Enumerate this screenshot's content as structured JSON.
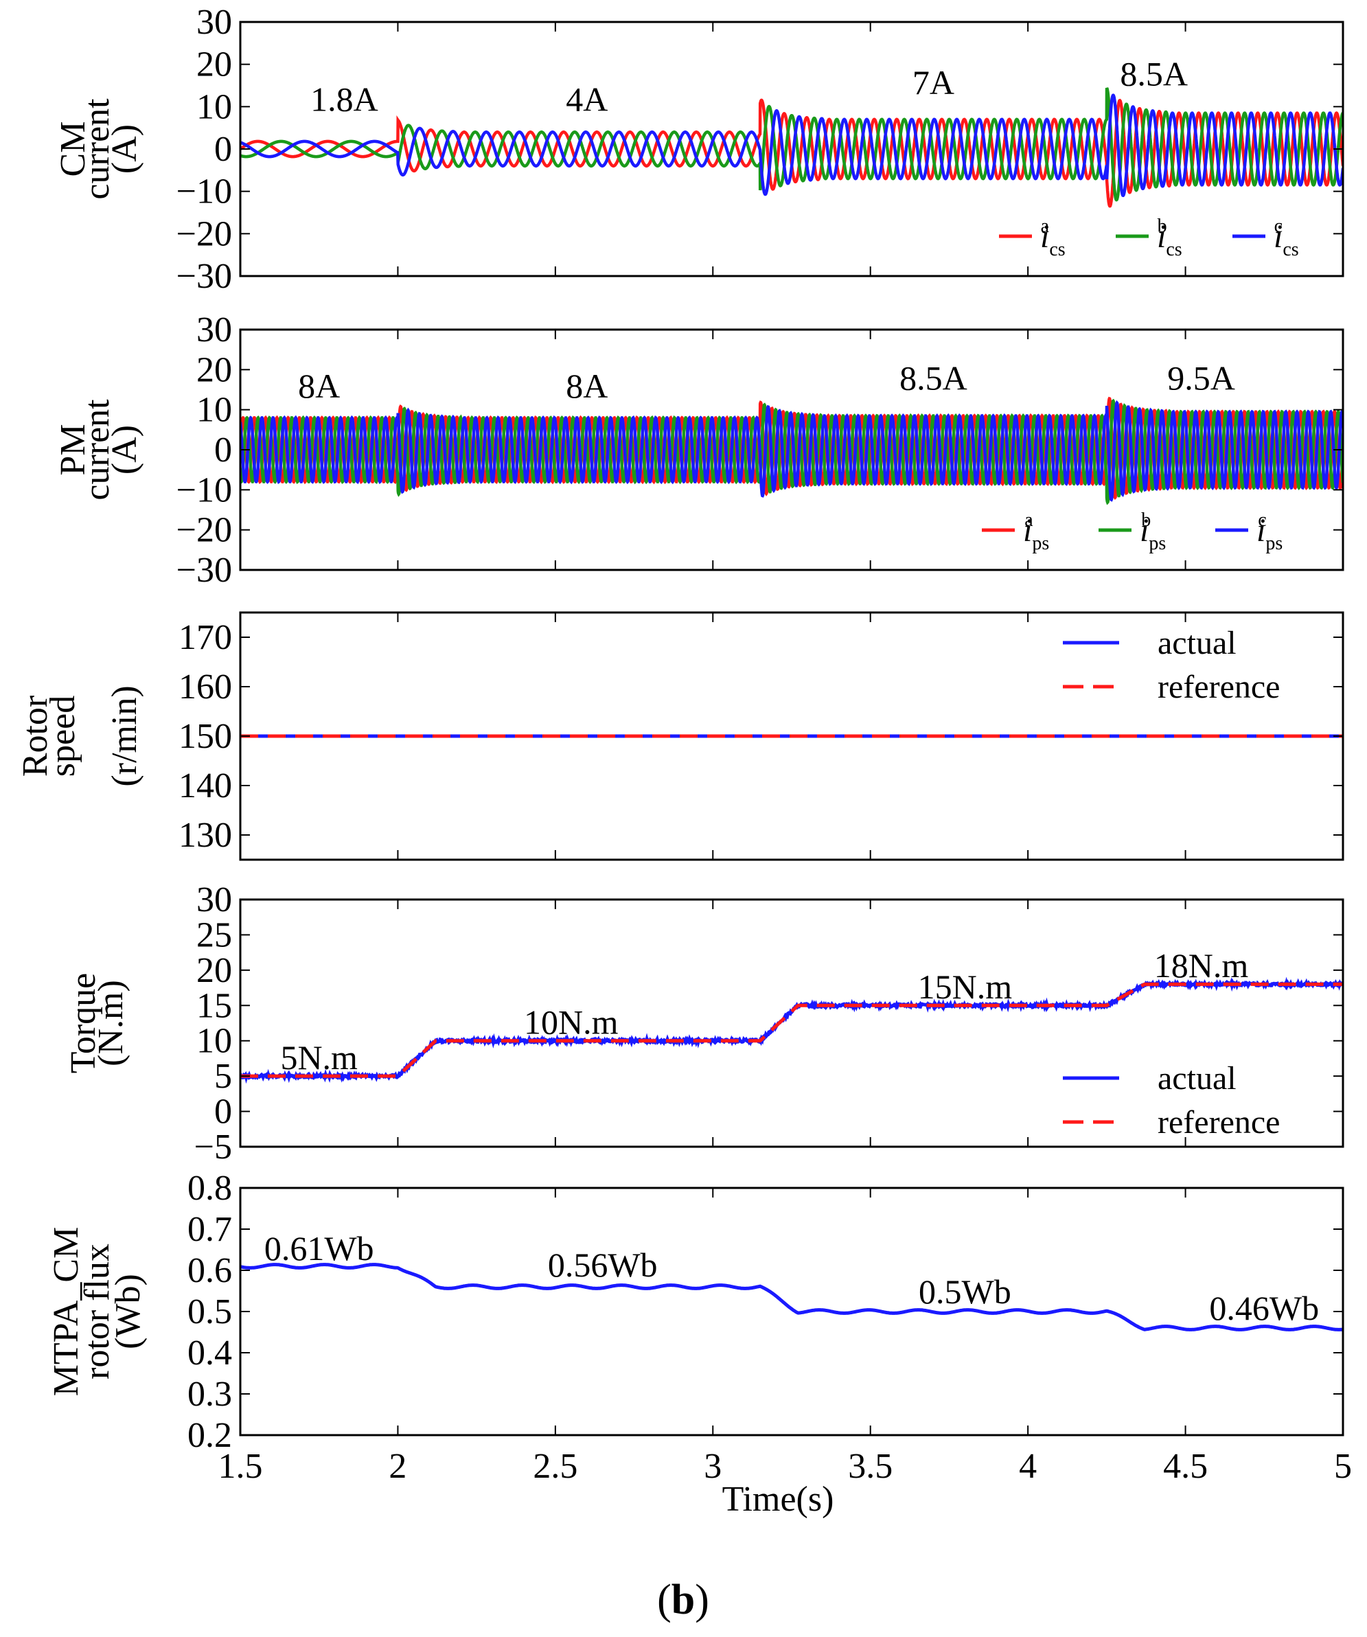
{
  "figure": {
    "caption_open": "(",
    "caption_letter": "b",
    "caption_close": ")",
    "xlabel": "Time(s)"
  },
  "chart_data": [
    {
      "type": "line",
      "id": "cm",
      "ylabel_lines": [
        "CM",
        "current",
        "(A)"
      ],
      "xlim": [
        1.5,
        5
      ],
      "ylim": [
        -30,
        30
      ],
      "yticks": [
        "30",
        "20",
        "10",
        "0",
        "−10",
        "−20",
        "−30"
      ],
      "xticks": [
        "1.5",
        "2",
        "2.5",
        "3",
        "3.5",
        "4",
        "4.5",
        "5"
      ],
      "signal": "three_phase",
      "segments": [
        {
          "t0": 1.5,
          "t1": 2.0,
          "amplitude": 1.8,
          "freq_hz": 4.5,
          "label": "1.8A",
          "label_x": 1.83,
          "label_y": 9
        },
        {
          "t0": 2.0,
          "t1": 3.15,
          "amplitude": 4,
          "freq_hz": 9.5,
          "label": "4A",
          "label_x": 2.6,
          "label_y": 9
        },
        {
          "t0": 3.15,
          "t1": 4.25,
          "amplitude": 7,
          "freq_hz": 14,
          "label": "7A",
          "label_x": 3.7,
          "label_y": 13
        },
        {
          "t0": 4.25,
          "t1": 5.0,
          "amplitude": 8.5,
          "freq_hz": 16,
          "label": "8.5A",
          "label_x": 4.4,
          "label_y": 15
        }
      ],
      "series": [
        {
          "name": "i_cs^a",
          "base": "i",
          "sub": "cs",
          "sup": "a",
          "color": "#ff1a1a"
        },
        {
          "name": "i_cs^b",
          "base": "i",
          "sub": "cs",
          "sup": "b",
          "color": "#1a9a1a"
        },
        {
          "name": "i_cs^c",
          "base": "i",
          "sub": "cs",
          "sup": "c",
          "color": "#1a1aff"
        }
      ],
      "legend": "bottom-right"
    },
    {
      "type": "line",
      "id": "pm",
      "ylabel_lines": [
        "PM",
        "current",
        "(A)"
      ],
      "xlim": [
        1.5,
        5
      ],
      "ylim": [
        -30,
        30
      ],
      "yticks": [
        "30",
        "20",
        "10",
        "0",
        "−10",
        "−20",
        "−30"
      ],
      "xticks": [
        "1.5",
        "2",
        "2.5",
        "3",
        "3.5",
        "4",
        "4.5",
        "5"
      ],
      "signal": "three_phase",
      "segments": [
        {
          "t0": 1.5,
          "t1": 2.0,
          "amplitude": 8,
          "freq_hz": 28,
          "label": "8A",
          "label_x": 1.75,
          "label_y": 13
        },
        {
          "t0": 2.0,
          "t1": 3.15,
          "amplitude": 8,
          "freq_hz": 28,
          "label": "8A",
          "label_x": 2.6,
          "label_y": 13
        },
        {
          "t0": 3.15,
          "t1": 4.25,
          "amplitude": 8.5,
          "freq_hz": 28,
          "label": "8.5A",
          "label_x": 3.7,
          "label_y": 15
        },
        {
          "t0": 4.25,
          "t1": 5.0,
          "amplitude": 9.5,
          "freq_hz": 28,
          "label": "9.5A",
          "label_x": 4.55,
          "label_y": 15
        }
      ],
      "series": [
        {
          "name": "i_ps^a",
          "base": "i",
          "sub": "ps",
          "sup": "a",
          "color": "#ff1a1a"
        },
        {
          "name": "i_ps^b",
          "base": "i",
          "sub": "ps",
          "sup": "b",
          "color": "#1a9a1a"
        },
        {
          "name": "i_ps^c",
          "base": "i",
          "sub": "ps",
          "sup": "c",
          "color": "#1a1aff"
        }
      ],
      "legend": "bottom-right"
    },
    {
      "type": "line",
      "id": "speed",
      "ylabel_lines": [
        "Rotor",
        "speed",
        "(r/min)"
      ],
      "xlim": [
        1.5,
        5
      ],
      "ylim": [
        125,
        175
      ],
      "yticks": [
        "170",
        "160",
        "150",
        "140",
        "130"
      ],
      "ytick_values": [
        170,
        160,
        150,
        140,
        130
      ],
      "xticks": [
        "1.5",
        "2",
        "2.5",
        "3",
        "3.5",
        "4",
        "4.5",
        "5"
      ],
      "signal": "steps",
      "steps": [
        {
          "t0": 1.5,
          "t1": 5.0,
          "value": 150
        }
      ],
      "series": [
        {
          "name": "actual",
          "color": "#1a1aff",
          "style": "solid"
        },
        {
          "name": "reference",
          "color": "#ff1a1a",
          "style": "dashed"
        }
      ],
      "legend": "top-right"
    },
    {
      "type": "line",
      "id": "torque",
      "ylabel_lines": [
        "Torque",
        "(N.m)"
      ],
      "xlim": [
        1.5,
        5
      ],
      "ylim": [
        -5,
        30
      ],
      "yticks": [
        "30",
        "25",
        "20",
        "15",
        "10",
        "5",
        "0",
        "−5"
      ],
      "ytick_values": [
        30,
        25,
        20,
        15,
        10,
        5,
        0,
        -5
      ],
      "xticks": [
        "1.5",
        "2",
        "2.5",
        "3",
        "3.5",
        "4",
        "4.5",
        "5"
      ],
      "signal": "steps",
      "steps": [
        {
          "t0": 1.5,
          "t1": 2.0,
          "value": 5,
          "label": "5N.m",
          "label_x": 1.75,
          "label_y": 6
        },
        {
          "t0": 2.0,
          "t1": 3.15,
          "value": 10,
          "label": "10N.m",
          "label_x": 2.55,
          "label_y": 11
        },
        {
          "t0": 3.15,
          "t1": 4.25,
          "value": 15,
          "label": "15N.m",
          "label_x": 3.8,
          "label_y": 16
        },
        {
          "t0": 4.25,
          "t1": 5.0,
          "value": 18,
          "label": "18N.m",
          "label_x": 4.55,
          "label_y": 19
        }
      ],
      "series": [
        {
          "name": "actual",
          "color": "#1a1aff",
          "style": "solid"
        },
        {
          "name": "reference",
          "color": "#ff1a1a",
          "style": "dashed"
        }
      ],
      "legend": "bottom-right"
    },
    {
      "type": "line",
      "id": "flux",
      "ylabel_lines": [
        "MTPA_CM",
        "rotor flux",
        "(Wb)"
      ],
      "xlim": [
        1.5,
        5
      ],
      "ylim": [
        0.2,
        0.8
      ],
      "yticks": [
        "0.8",
        "0.7",
        "0.6",
        "0.5",
        "0.4",
        "0.3",
        "0.2"
      ],
      "ytick_values": [
        0.8,
        0.7,
        0.6,
        0.5,
        0.4,
        0.3,
        0.2
      ],
      "xticks": [
        "1.5",
        "2",
        "2.5",
        "3",
        "3.5",
        "4",
        "4.5",
        "5"
      ],
      "signal": "steps",
      "steps": [
        {
          "t0": 1.5,
          "t1": 2.0,
          "value": 0.61,
          "label": "0.61Wb",
          "label_x": 1.75,
          "label_y": 0.625
        },
        {
          "t0": 2.0,
          "t1": 3.15,
          "value": 0.56,
          "label": "0.56Wb",
          "label_x": 2.65,
          "label_y": 0.585
        },
        {
          "t0": 3.15,
          "t1": 4.25,
          "value": 0.5,
          "label": "0.5Wb",
          "label_x": 3.8,
          "label_y": 0.52
        },
        {
          "t0": 4.25,
          "t1": 5.0,
          "value": 0.46,
          "label": "0.46Wb",
          "label_x": 4.75,
          "label_y": 0.48
        }
      ],
      "series": [
        {
          "name": "flux",
          "color": "#1a1aff",
          "style": "solid"
        }
      ],
      "legend": "none"
    }
  ]
}
